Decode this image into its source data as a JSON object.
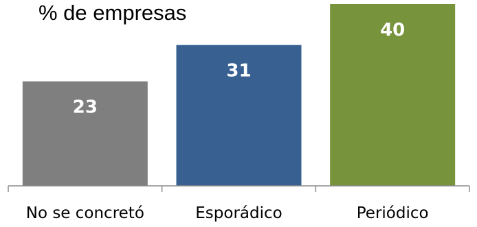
{
  "chart_data": {
    "type": "bar",
    "title": "% de empresas",
    "categories": [
      "No se concretó",
      "Esporádico",
      "Periódico"
    ],
    "values": [
      23,
      31,
      40
    ],
    "colors": [
      "#7f7f7f",
      "#386192",
      "#77933c"
    ],
    "ylim": [
      0,
      40
    ],
    "grid": false,
    "legend": "none"
  }
}
